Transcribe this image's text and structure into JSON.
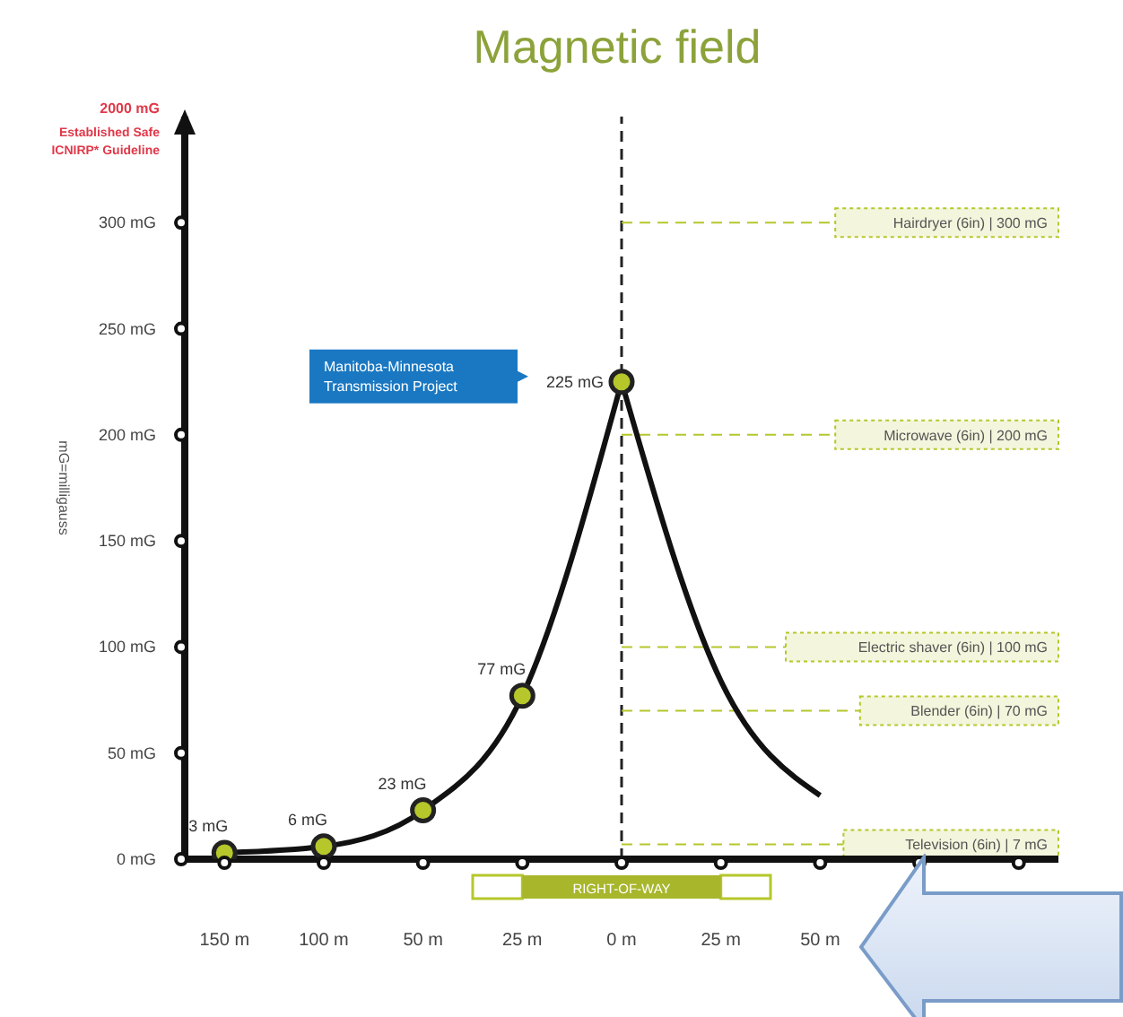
{
  "chart_data": {
    "type": "line",
    "title": "Magnetic field",
    "ylabel": "mG=milligauss",
    "categories": [
      "150 m",
      "100 m",
      "50 m",
      "25 m",
      "0 m",
      "25 m",
      "50 m",
      null,
      null
    ],
    "series": [
      {
        "color": "#111111",
        "values": [
          3,
          6,
          23,
          77,
          225,
          null,
          null,
          null,
          null
        ],
        "marker": "circle",
        "value_labels": [
          "3 mG",
          "6 mG",
          "23 mG",
          "77 mG",
          "225 mG",
          null,
          null,
          null,
          null
        ]
      },
      {
        "color": "#111111",
        "values": [
          null,
          null,
          null,
          null,
          225,
          84,
          30,
          null,
          null
        ],
        "marker": "none"
      }
    ],
    "ylim": [
      0,
      350
    ],
    "yticks": [
      {
        "value": 0,
        "label": "0 mG"
      },
      {
        "value": 50,
        "label": "50 mG"
      },
      {
        "value": 100,
        "label": "100 mG"
      },
      {
        "value": 150,
        "label": "150 mG"
      },
      {
        "value": 200,
        "label": "200 mG"
      },
      {
        "value": 250,
        "label": "250 mG"
      },
      {
        "value": 300,
        "label": "300 mG"
      }
    ],
    "ref_lines": [
      {
        "axis": "x",
        "value": "0 m",
        "color": "#222222",
        "line_style": "dashed"
      },
      {
        "axis": "y",
        "value": 300,
        "label": "Hairdryer (6in) | 300 mG",
        "color": "#b5c72a",
        "line_style": "dashed"
      },
      {
        "axis": "y",
        "value": 200,
        "label": "Microwave (6in) | 200 mG",
        "color": "#b5c72a",
        "line_style": "dashed"
      },
      {
        "axis": "y",
        "value": 100,
        "label": "Electric shaver (6in) | 100 mG",
        "color": "#b5c72a",
        "line_style": "dashed"
      },
      {
        "axis": "y",
        "value": 70,
        "label": "Blender (6in) | 70 mG",
        "color": "#b5c72a",
        "line_style": "dashed"
      },
      {
        "axis": "y",
        "value": 7,
        "label": "Television (6in) | 7 mG",
        "color": "#b5c72a",
        "line_style": "dashed"
      }
    ],
    "annotations": [
      "2000 mG",
      "Established Safe ICNIRP* Guideline",
      "RIGHT-OF-WAY",
      "Manitoba-Minnesota Transmission Project"
    ],
    "grid": false,
    "legend": false
  }
}
